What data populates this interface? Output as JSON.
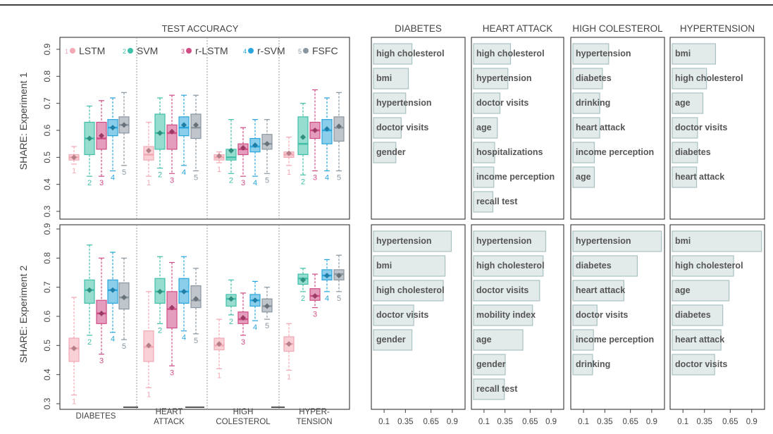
{
  "figure": {
    "boxplot_title": "TEST ACCURACY",
    "panel_titles": [
      "DIABETES",
      "HEART ATTACK",
      "HIGH COLESTEROL",
      "HYPERTENSION"
    ],
    "row_labels": [
      "SHARE: Experiment 1",
      "SHARE: Experiment 2"
    ],
    "group_labels": [
      [
        "DIABETES"
      ],
      [
        "HEART",
        "ATTACK"
      ],
      [
        "HIGH",
        "COLESTEROL"
      ],
      [
        "HYPER-",
        "TENSION"
      ]
    ],
    "legend": [
      {
        "num": "1",
        "name": "LSTM"
      },
      {
        "num": "2",
        "name": "SVM"
      },
      {
        "num": "3",
        "name": "r-LSTM"
      },
      {
        "num": "4",
        "name": "r-SVM"
      },
      {
        "num": "5",
        "name": "FSFC"
      }
    ]
  },
  "colors": {
    "LSTM": "#f2a9b4",
    "SVM": "#3fbfa8",
    "r-LSTM": "#cf4d86",
    "r-SVM": "#2aa6dc",
    "FSFC": "#8a96a0",
    "bar_fill": "#e3eaea",
    "bar_stroke": "#a9c1c1"
  },
  "chart_data": [
    {
      "type": "box",
      "title": "TEST ACCURACY",
      "row": "SHARE: Experiment 1",
      "ylim": [
        0.3,
        0.9
      ],
      "yticks": [
        "0.3",
        "0.4",
        "0.5",
        "0.6",
        "0.7",
        "0.8",
        "0.9"
      ],
      "groups": [
        "DIABETES",
        "HEART ATTACK",
        "HIGH COLESTEROL",
        "HYPERTENSION"
      ],
      "series": [
        "LSTM",
        "SVM",
        "r-LSTM",
        "r-SVM",
        "FSFC"
      ],
      "boxes": [
        [
          [
            0.475,
            0.49,
            0.5,
            0.51,
            0.54,
            0.5
          ],
          [
            0.43,
            0.51,
            0.57,
            0.63,
            0.69,
            0.57
          ],
          [
            0.43,
            0.53,
            0.57,
            0.63,
            0.71,
            0.58
          ],
          [
            0.45,
            0.58,
            0.61,
            0.64,
            0.72,
            0.61
          ],
          [
            0.47,
            0.59,
            0.62,
            0.65,
            0.74,
            0.62
          ]
        ],
        [
          [
            0.43,
            0.49,
            0.51,
            0.54,
            0.63,
            0.525
          ],
          [
            0.46,
            0.53,
            0.59,
            0.66,
            0.72,
            0.59
          ],
          [
            0.44,
            0.53,
            0.59,
            0.62,
            0.73,
            0.595
          ],
          [
            0.47,
            0.58,
            0.61,
            0.65,
            0.73,
            0.62
          ],
          [
            0.45,
            0.57,
            0.61,
            0.66,
            0.73,
            0.62
          ]
        ],
        [
          [
            0.48,
            0.49,
            0.5,
            0.51,
            0.52,
            0.505
          ],
          [
            0.44,
            0.49,
            0.5,
            0.53,
            0.64,
            0.525
          ],
          [
            0.43,
            0.51,
            0.53,
            0.55,
            0.61,
            0.535
          ],
          [
            0.43,
            0.52,
            0.54,
            0.57,
            0.64,
            0.545
          ],
          [
            0.44,
            0.53,
            0.55,
            0.585,
            0.64,
            0.55
          ]
        ],
        [
          [
            0.47,
            0.5,
            0.51,
            0.52,
            0.575,
            0.515
          ],
          [
            0.435,
            0.51,
            0.55,
            0.65,
            0.7,
            0.575
          ],
          [
            0.45,
            0.57,
            0.6,
            0.63,
            0.75,
            0.6
          ],
          [
            0.45,
            0.55,
            0.6,
            0.64,
            0.72,
            0.605
          ],
          [
            0.45,
            0.56,
            0.61,
            0.65,
            0.74,
            0.615
          ]
        ]
      ]
    },
    {
      "type": "box",
      "title": "",
      "row": "SHARE: Experiment 2",
      "ylim": [
        0.3,
        0.9
      ],
      "yticks": [
        "0.3",
        "0.4",
        "0.5",
        "0.6",
        "0.7",
        "0.8",
        "0.9"
      ],
      "groups": [
        "DIABETES",
        "HEART ATTACK",
        "HIGH COLESTEROL",
        "HYPERTENSION"
      ],
      "series": [
        "LSTM",
        "SVM",
        "r-LSTM",
        "r-SVM",
        "FSFC"
      ],
      "boxes": [
        [
          [
            0.33,
            0.445,
            0.49,
            0.525,
            0.665,
            0.49
          ],
          [
            0.535,
            0.645,
            0.69,
            0.725,
            0.845,
            0.69
          ],
          [
            0.47,
            0.575,
            0.61,
            0.655,
            0.8,
            0.61
          ],
          [
            0.545,
            0.645,
            0.69,
            0.725,
            0.82,
            0.69
          ],
          [
            0.52,
            0.625,
            0.665,
            0.715,
            0.8,
            0.665
          ]
        ],
        [
          [
            0.355,
            0.445,
            0.495,
            0.55,
            0.685,
            0.5
          ],
          [
            0.575,
            0.645,
            0.685,
            0.73,
            0.805,
            0.685
          ],
          [
            0.43,
            0.56,
            0.625,
            0.685,
            0.785,
            0.63
          ],
          [
            0.55,
            0.645,
            0.685,
            0.73,
            0.805,
            0.685
          ],
          [
            0.54,
            0.63,
            0.655,
            0.705,
            0.765,
            0.66
          ]
        ],
        [
          [
            0.42,
            0.485,
            0.5,
            0.525,
            0.59,
            0.505
          ],
          [
            0.605,
            0.635,
            0.66,
            0.675,
            0.725,
            0.66
          ],
          [
            0.535,
            0.575,
            0.59,
            0.615,
            0.68,
            0.595
          ],
          [
            0.585,
            0.635,
            0.655,
            0.675,
            0.72,
            0.655
          ],
          [
            0.59,
            0.615,
            0.635,
            0.66,
            0.7,
            0.635
          ]
        ],
        [
          [
            0.415,
            0.48,
            0.505,
            0.53,
            0.575,
            0.505
          ],
          [
            0.685,
            0.71,
            0.73,
            0.745,
            0.765,
            0.725
          ],
          [
            0.63,
            0.655,
            0.67,
            0.695,
            0.745,
            0.67
          ],
          [
            0.685,
            0.725,
            0.74,
            0.76,
            0.795,
            0.74
          ],
          [
            0.685,
            0.725,
            0.745,
            0.76,
            0.81,
            0.74
          ]
        ]
      ]
    },
    {
      "type": "bar",
      "orientation": "horizontal",
      "title": "DIABETES",
      "row": "SHARE: Experiment 1",
      "xlim": [
        0,
        1
      ],
      "xticks": [
        "0.1",
        "0.35",
        "0.65",
        "0.9"
      ],
      "categories": [
        "high cholesterol",
        "bmi",
        "hypertension",
        "doctor visits",
        "gender"
      ],
      "values": [
        0.43,
        0.39,
        0.36,
        0.31,
        0.25
      ]
    },
    {
      "type": "bar",
      "orientation": "horizontal",
      "title": "HEART ATTACK",
      "row": "SHARE: Experiment 1",
      "xlim": [
        0,
        1
      ],
      "xticks": [
        "0.1",
        "0.35",
        "0.65",
        "0.9"
      ],
      "categories": [
        "high cholesterol",
        "hypertension",
        "doctor visits",
        "age",
        "hospitalizations",
        "income perception",
        "recall test"
      ],
      "values": [
        0.42,
        0.39,
        0.3,
        0.27,
        0.24,
        0.23,
        0.22
      ]
    },
    {
      "type": "bar",
      "orientation": "horizontal",
      "title": "HIGH COLESTEROL",
      "row": "SHARE: Experiment 1",
      "xlim": [
        0,
        1
      ],
      "xticks": [
        "0.1",
        "0.35",
        "0.65",
        "0.9"
      ],
      "categories": [
        "hypertension",
        "diabetes",
        "drinking",
        "heart attack",
        "income perception",
        "age"
      ],
      "values": [
        0.4,
        0.33,
        0.3,
        0.3,
        0.24,
        0.24
      ]
    },
    {
      "type": "bar",
      "orientation": "horizontal",
      "title": "HYPERTENSION",
      "row": "SHARE: Experiment 1",
      "xlim": [
        0,
        1
      ],
      "xticks": [
        "0.1",
        "0.35",
        "0.65",
        "0.9"
      ],
      "categories": [
        "bmi",
        "high cholesterol",
        "age",
        "doctor visits",
        "diabetes",
        "heart attack"
      ],
      "values": [
        0.48,
        0.38,
        0.34,
        0.28,
        0.28,
        0.27
      ]
    },
    {
      "type": "bar",
      "orientation": "horizontal",
      "title": "DIABETES",
      "row": "SHARE: Experiment 2",
      "xlim": [
        0,
        1
      ],
      "xticks": [
        "0.1",
        "0.35",
        "0.65",
        "0.9"
      ],
      "categories": [
        "hypertension",
        "bmi",
        "high cholesterol",
        "doctor visits",
        "gender"
      ],
      "values": [
        0.87,
        0.8,
        0.78,
        0.45,
        0.43
      ]
    },
    {
      "type": "bar",
      "orientation": "horizontal",
      "title": "HEART ATTACK",
      "row": "SHARE: Experiment 2",
      "xlim": [
        0,
        1
      ],
      "xticks": [
        "0.1",
        "0.35",
        "0.65",
        "0.9"
      ],
      "categories": [
        "hypertension",
        "high cholesterol",
        "doctor visits",
        "mobility index",
        "age",
        "gender",
        "recall test"
      ],
      "values": [
        0.82,
        0.79,
        0.75,
        0.67,
        0.56,
        0.36,
        0.35
      ]
    },
    {
      "type": "bar",
      "orientation": "horizontal",
      "title": "HIGH COLESTEROL",
      "row": "SHARE: Experiment 2",
      "xlim": [
        0,
        1
      ],
      "xticks": [
        "0.1",
        "0.35",
        "0.65",
        "0.9"
      ],
      "categories": [
        "hypertension",
        "diabetes",
        "heart attack",
        "doctor visits",
        "income perception",
        "drinking"
      ],
      "values": [
        0.99,
        0.72,
        0.57,
        0.27,
        0.23,
        0.22
      ]
    },
    {
      "type": "bar",
      "orientation": "horizontal",
      "title": "HYPERTENSION",
      "row": "SHARE: Experiment 2",
      "xlim": [
        0,
        1
      ],
      "xticks": [
        "0.1",
        "0.35",
        "0.65",
        "0.9"
      ],
      "categories": [
        "bmi",
        "high cholesterol",
        "age",
        "diabetes",
        "heart attack",
        "doctor visits"
      ],
      "values": [
        0.99,
        0.68,
        0.63,
        0.56,
        0.54,
        0.47
      ]
    }
  ]
}
